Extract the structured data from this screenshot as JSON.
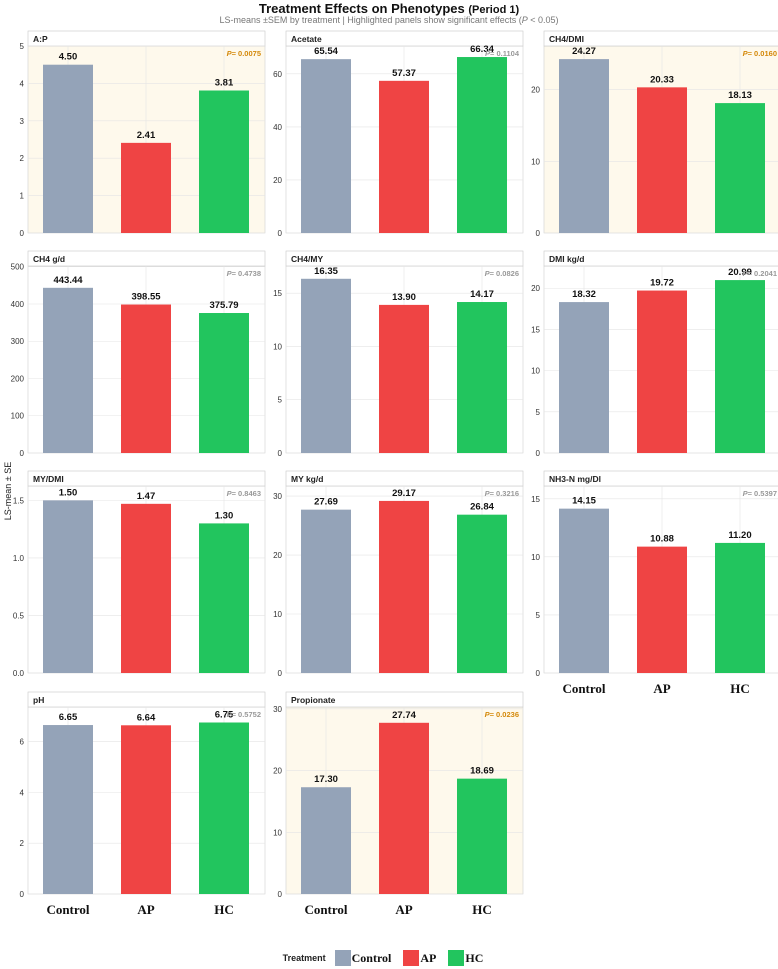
{
  "chart_data": {
    "type": "bar",
    "title": "Treatment Effects on Phenotypes",
    "title_suffix": "(Period 1)",
    "subtitle_pre": "LS-means ±SEM  by treatment | Highlighted panels show significant effects (",
    "subtitle_p": "P",
    "subtitle_post": " < 0.05)",
    "ylabel": "LS-mean ± SE",
    "xlabel": "Treatment",
    "categories": [
      "Control",
      "AP",
      "HC"
    ],
    "colors": {
      "Control": "#94a3b8",
      "AP": "#ef4444",
      "HC": "#22c55e",
      "significant_bg": "#fef9ec",
      "significant_text": "#d4890a",
      "nonsignificant_text": "#999999",
      "grid": "#e5e5e5",
      "strip_bg": "#ffffff"
    },
    "panels": [
      {
        "name": "A:P",
        "values": [
          4.5,
          2.41,
          3.81
        ],
        "labels": [
          "4.50",
          "2.41",
          "3.81"
        ],
        "p_text": "= 0.0075",
        "significant": true,
        "ylim": [
          0,
          5
        ],
        "ticks": [
          "0",
          "1",
          "2",
          "3",
          "4",
          "5"
        ]
      },
      {
        "name": "Acetate",
        "values": [
          65.54,
          57.37,
          66.34
        ],
        "labels": [
          "65.54",
          "57.37",
          "66.34"
        ],
        "p_text": "= 0.1104",
        "significant": false,
        "ylim": [
          0,
          70.5
        ],
        "ticks": [
          "0",
          "20",
          "40",
          "60"
        ]
      },
      {
        "name": "CH4/DMI",
        "values": [
          24.27,
          20.33,
          18.13
        ],
        "labels": [
          "24.27",
          "20.33",
          "18.13"
        ],
        "p_text": "= 0.0160",
        "significant": true,
        "ylim": [
          0,
          26.1
        ],
        "ticks": [
          "0",
          "10",
          "20"
        ]
      },
      {
        "name": "CH4 g/d",
        "values": [
          443.44,
          398.55,
          375.79
        ],
        "labels": [
          "443.44",
          "398.55",
          "375.79"
        ],
        "p_text": "= 0.4738",
        "significant": false,
        "ylim": [
          0,
          502
        ],
        "ticks": [
          "0",
          "100",
          "200",
          "300",
          "400",
          "500"
        ]
      },
      {
        "name": "CH4/MY",
        "values": [
          16.35,
          13.9,
          14.17
        ],
        "labels": [
          "16.35",
          "13.90",
          "14.17"
        ],
        "p_text": "= 0.0826",
        "significant": false,
        "ylim": [
          0,
          17.55
        ],
        "ticks": [
          "0",
          "5",
          "10",
          "15"
        ]
      },
      {
        "name": "DMI kg/d",
        "values": [
          18.32,
          19.72,
          20.99
        ],
        "labels": [
          "18.32",
          "19.72",
          "20.99"
        ],
        "p_text": "= 0.2041",
        "significant": false,
        "ylim": [
          0,
          22.7
        ],
        "ticks": [
          "0",
          "5",
          "10",
          "15",
          "20"
        ]
      },
      {
        "name": "MY/DMI",
        "values": [
          1.5,
          1.47,
          1.3
        ],
        "labels": [
          "1.50",
          "1.47",
          "1.30"
        ],
        "p_text": "= 0.8463",
        "significant": false,
        "ylim": [
          0,
          1.625
        ],
        "ticks": [
          "0.0",
          "0.5",
          "1.0",
          "1.5"
        ]
      },
      {
        "name": "MY kg/d",
        "values": [
          27.69,
          29.17,
          26.84
        ],
        "labels": [
          "27.69",
          "29.17",
          "26.84"
        ],
        "p_text": "= 0.3216",
        "significant": false,
        "ylim": [
          0,
          31.7
        ],
        "ticks": [
          "0",
          "10",
          "20",
          "30"
        ]
      },
      {
        "name": "NH3-N mg/Dl",
        "values": [
          14.15,
          10.88,
          11.2
        ],
        "labels": [
          "14.15",
          "10.88",
          "11.20"
        ],
        "p_text": "= 0.5397",
        "significant": false,
        "ylim": [
          0,
          16.1
        ],
        "ticks": [
          "0",
          "5",
          "10",
          "15"
        ]
      },
      {
        "name": "pH",
        "values": [
          6.65,
          6.64,
          6.75
        ],
        "labels": [
          "6.65",
          "6.64",
          "6.75"
        ],
        "p_text": "= 0.5752",
        "significant": false,
        "ylim": [
          0,
          7.36
        ],
        "ticks": [
          "0",
          "2",
          "4",
          "6"
        ]
      },
      {
        "name": "Propionate",
        "values": [
          17.3,
          27.74,
          18.69
        ],
        "labels": [
          "17.30",
          "27.74",
          "18.69"
        ],
        "p_text": "= 0.0236",
        "significant": true,
        "ylim": [
          0,
          30.3
        ],
        "ticks": [
          "0",
          "10",
          "20",
          "30"
        ]
      }
    ],
    "legend": {
      "title": "Treatment",
      "position": "bottom",
      "items": [
        "Control",
        "AP",
        "HC"
      ]
    }
  }
}
